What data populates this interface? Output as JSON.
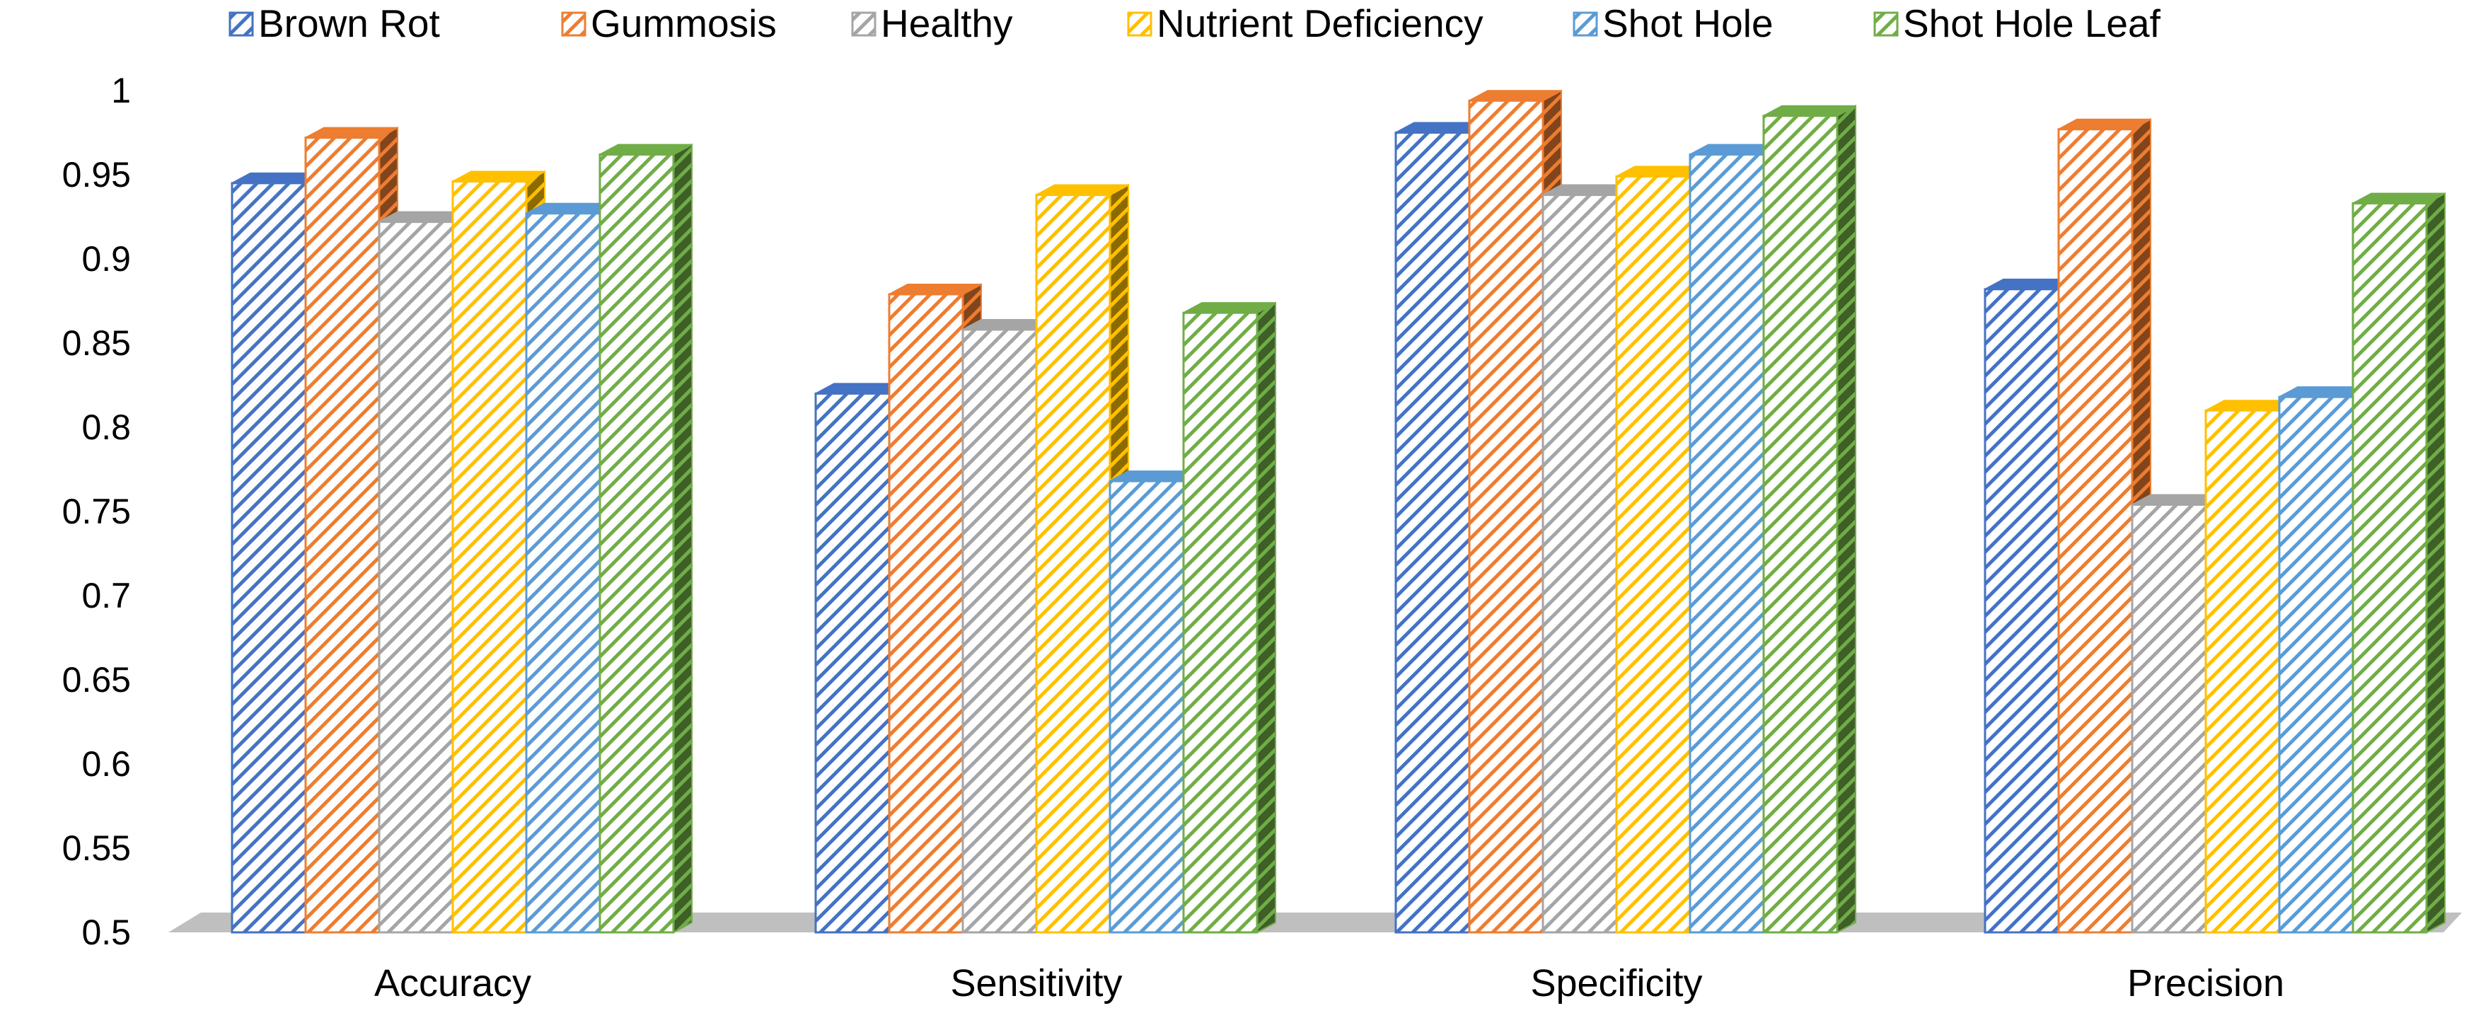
{
  "chart_data": {
    "type": "bar",
    "title": "",
    "xlabel": "",
    "ylabel": "",
    "ylim": [
      0.5,
      1.0
    ],
    "ytick_step": 0.05,
    "ytick_labels": [
      "0.5",
      "0.55",
      "0.6",
      "0.65",
      "0.7",
      "0.75",
      "0.8",
      "0.85",
      "0.9",
      "0.95",
      "1"
    ],
    "grid": false,
    "legend_position": "top",
    "style": "3d-clustered-column-hatched",
    "categories": [
      "Accuracy",
      "Sensitivity",
      "Specificity",
      "Precision"
    ],
    "series": [
      {
        "name": "Brown Rot",
        "color": "#4472C4",
        "values": [
          0.945,
          0.82,
          0.975,
          0.882
        ]
      },
      {
        "name": "Gummosis",
        "color": "#ED7D31",
        "values": [
          0.972,
          0.879,
          0.994,
          0.977
        ]
      },
      {
        "name": "Healthy",
        "color": "#A5A5A5",
        "values": [
          0.922,
          0.858,
          0.938,
          0.754
        ]
      },
      {
        "name": "Nutrient Deficiency",
        "color": "#FFC000",
        "values": [
          0.946,
          0.938,
          0.949,
          0.81
        ]
      },
      {
        "name": "Shot Hole",
        "color": "#5B9BD5",
        "values": [
          0.927,
          0.768,
          0.962,
          0.818
        ]
      },
      {
        "name": "Shot Hole Leaf",
        "color": "#70AD47",
        "values": [
          0.962,
          0.868,
          0.985,
          0.933
        ]
      }
    ]
  }
}
